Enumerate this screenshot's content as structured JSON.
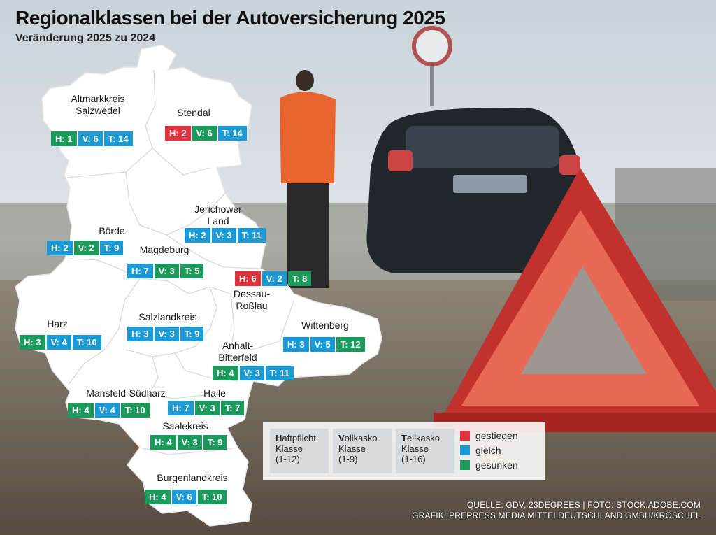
{
  "title": "Regionalklassen bei der Autoversicherung 2025",
  "subtitle": "Veränderung 2025 zu 2024",
  "colors": {
    "gestiegen": "#e0313e",
    "gleich": "#1b9ad6",
    "gesunken": "#1b9a5c"
  },
  "districts": [
    {
      "name_line1": "Altmarkkreis",
      "name_line2": "Salzwedel",
      "badges": [
        {
          "text": "H: 1",
          "status": "gesunken"
        },
        {
          "text": "V: 6",
          "status": "gleich"
        },
        {
          "text": "T: 14",
          "status": "gleich"
        }
      ]
    },
    {
      "name_line1": "Stendal",
      "badges": [
        {
          "text": "H: 2",
          "status": "gestiegen"
        },
        {
          "text": "V: 6",
          "status": "gesunken"
        },
        {
          "text": "T: 14",
          "status": "gleich"
        }
      ]
    },
    {
      "name_line1": "Jerichower",
      "name_line2": "Land",
      "badges": [
        {
          "text": "H: 2",
          "status": "gleich"
        },
        {
          "text": "V: 3",
          "status": "gleich"
        },
        {
          "text": "T: 11",
          "status": "gleich"
        }
      ]
    },
    {
      "name_line1": "Börde",
      "badges": [
        {
          "text": "H: 2",
          "status": "gleich"
        },
        {
          "text": "V: 2",
          "status": "gesunken"
        },
        {
          "text": "T: 9",
          "status": "gleich"
        }
      ]
    },
    {
      "name_line1": "Magdeburg",
      "badges": [
        {
          "text": "H: 7",
          "status": "gleich"
        },
        {
          "text": "V: 3",
          "status": "gesunken"
        },
        {
          "text": "T: 5",
          "status": "gesunken"
        }
      ]
    },
    {
      "name_line1": "Dessau-",
      "name_line2": "Roßlau",
      "badges": [
        {
          "text": "H: 6",
          "status": "gestiegen"
        },
        {
          "text": "V: 2",
          "status": "gleich"
        },
        {
          "text": "T: 8",
          "status": "gesunken"
        }
      ]
    },
    {
      "name_line1": "Harz",
      "badges": [
        {
          "text": "H: 3",
          "status": "gesunken"
        },
        {
          "text": "V: 4",
          "status": "gleich"
        },
        {
          "text": "T: 10",
          "status": "gleich"
        }
      ]
    },
    {
      "name_line1": "Salzlandkreis",
      "badges": [
        {
          "text": "H: 3",
          "status": "gleich"
        },
        {
          "text": "V: 3",
          "status": "gleich"
        },
        {
          "text": "T: 9",
          "status": "gleich"
        }
      ]
    },
    {
      "name_line1": "Wittenberg",
      "badges": [
        {
          "text": "H: 3",
          "status": "gleich"
        },
        {
          "text": "V: 5",
          "status": "gleich"
        },
        {
          "text": "T: 12",
          "status": "gesunken"
        }
      ]
    },
    {
      "name_line1": "Anhalt-",
      "name_line2": "Bitterfeld",
      "badges": [
        {
          "text": "H: 4",
          "status": "gesunken"
        },
        {
          "text": "V: 3",
          "status": "gleich"
        },
        {
          "text": "T: 11",
          "status": "gleich"
        }
      ]
    },
    {
      "name_line1": "Mansfeld-Südharz",
      "badges": [
        {
          "text": "H: 4",
          "status": "gesunken"
        },
        {
          "text": "V: 4",
          "status": "gleich"
        },
        {
          "text": "T: 10",
          "status": "gesunken"
        }
      ]
    },
    {
      "name_line1": "Halle",
      "badges": [
        {
          "text": "H: 7",
          "status": "gleich"
        },
        {
          "text": "V: 3",
          "status": "gesunken"
        },
        {
          "text": "T: 7",
          "status": "gesunken"
        }
      ]
    },
    {
      "name_line1": "Saalekreis",
      "badges": [
        {
          "text": "H: 4",
          "status": "gesunken"
        },
        {
          "text": "V: 3",
          "status": "gesunken"
        },
        {
          "text": "T: 9",
          "status": "gesunken"
        }
      ]
    },
    {
      "name_line1": "Burgenlandkreis",
      "badges": [
        {
          "text": "H: 4",
          "status": "gesunken"
        },
        {
          "text": "V: 6",
          "status": "gleich"
        },
        {
          "text": "T: 10",
          "status": "gesunken"
        }
      ]
    }
  ],
  "legend": {
    "columns": [
      {
        "first": "H",
        "rest": "aftpflicht",
        "line2": "Klasse",
        "line3": "(1-12)"
      },
      {
        "first": "V",
        "rest": "ollkasko",
        "line2": "Klasse",
        "line3": "(1-9)"
      },
      {
        "first": "T",
        "rest": "eilkasko",
        "line2": "Klasse",
        "line3": "(1-16)"
      }
    ],
    "items": [
      {
        "label": "gestiegen",
        "color": "#e0313e"
      },
      {
        "label": "gleich",
        "color": "#1b9ad6"
      },
      {
        "label": "gesunken",
        "color": "#1b9a5c"
      }
    ]
  },
  "credits": {
    "line1": "QUELLE: GDV, 23DEGREES | FOTO: STOCK.ADOBE.COM",
    "line2": "GRAFIK: PREPRESS MEDIA MITTELDEUTSCHLAND GMBH/KROSCHEL"
  }
}
